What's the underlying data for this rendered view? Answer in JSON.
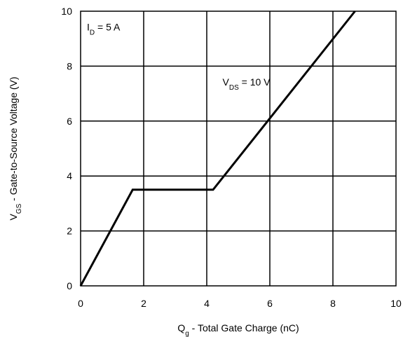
{
  "chart_data": {
    "type": "line",
    "x": [
      0,
      1.65,
      4.2,
      8.7
    ],
    "series": [
      {
        "values": [
          0,
          3.5,
          3.5,
          10
        ]
      }
    ],
    "xlim": [
      0,
      10
    ],
    "ylim": [
      0,
      10
    ],
    "x_ticks": [
      0,
      2,
      4,
      6,
      8,
      10
    ],
    "y_ticks": [
      0,
      2,
      4,
      6,
      8,
      10
    ],
    "x_tick_labels": [
      "0",
      "2",
      "4",
      "6",
      "8",
      "10"
    ],
    "y_tick_labels": [
      "0",
      "2",
      "4",
      "6",
      "8",
      "10"
    ],
    "grid": true,
    "xlabel": {
      "main": "Q",
      "sub": "g",
      "rest": " - Total Gate Charge (nC)"
    },
    "ylabel": {
      "main": "V",
      "sub": "GS",
      "rest": " - Gate-to-Source Voltage (V)"
    },
    "annotations": [
      {
        "main": "I",
        "sub": "D",
        "rest": " = 5 A",
        "x": 0.2,
        "y": 9.3
      },
      {
        "main": "V",
        "sub": "DS",
        "rest": " = 10 V",
        "x": 4.5,
        "y": 7.3
      }
    ]
  }
}
